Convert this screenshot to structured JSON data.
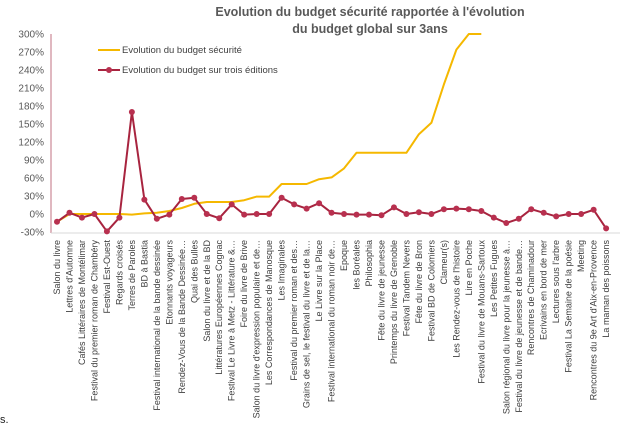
{
  "chart_data": {
    "type": "line",
    "title": "Evolution du budget sécurité rapportée à l'évolution du budget global sur 3ans",
    "title_lines": [
      "Evolution du budget sécurité rapportée à l'évolution",
      "du budget global sur 3ans"
    ],
    "xlabel": "",
    "ylabel": "",
    "ylim": [
      -30,
      300
    ],
    "yticks": [
      -30,
      0,
      30,
      60,
      90,
      120,
      150,
      180,
      210,
      240,
      270,
      300
    ],
    "ytick_labels": [
      "-30%",
      "0%",
      "30%",
      "60%",
      "90%",
      "120%",
      "150%",
      "180%",
      "210%",
      "240%",
      "270%",
      "300%"
    ],
    "grid": false,
    "legend_position": "top-left",
    "categories": [
      "Salon du livre",
      "Lettres d'Automne",
      "Cafés Littéraires de Montélimar",
      "Festival du premier roman de Chambéry",
      "Festival Est-Ouest",
      "Regards croisés",
      "Terres de Paroles",
      "BD à Bastia",
      "Festival international de la bande dessinée",
      "Etonnants voyageurs",
      "Rendez-Vous de la Bande Dessinée…",
      "Quai des Bulles",
      "Salon du livre et de la BD",
      "Littératures Européennes Cognac",
      "Festival Le Livre à Metz - Littérature &…",
      "Foire du livre de Brive",
      "Salon du livre d'expression populaire et de…",
      "Les Correspondances de Manosque",
      "Les Imaginales",
      "Festival du premier roman et des…",
      "Grains de sel, le festival du livre et de la…",
      "Le Livre sur la Place",
      "Festival international du roman noir de…",
      "Epoque",
      "les Boréales",
      "Philosophia",
      "Fête du livre de jeunesse",
      "Printemps du livre de Grenoble",
      "Festival Tandem Nevers",
      "Fête du livre de Bron",
      "Festival BD de Colomiers",
      "Clameur(s)",
      "Les Rendez-vous de l'histoire",
      "Lire en Poche",
      "Festival du livre de Mouans-Sartoux",
      "Les Petites Fugues",
      "Salon régional du livre pour la jeunesse à…",
      "Festival du livre de jeunesse et de bande…",
      "Rencontres de Chaminadour",
      "Ecrivains en bord de mer",
      "Lectures sous l'arbre",
      "Festival La Semaine de la poésie",
      "Meeting",
      "Rencontres du 9e Art d'Aix-en-Provence",
      "La maman des poissons"
    ],
    "series": [
      {
        "name": "Evolution du budget sécurité",
        "color": "#F5B800",
        "marker": "none",
        "values": [
          -13,
          0,
          0,
          0,
          0,
          0,
          -1,
          1,
          2,
          5,
          10,
          17,
          20,
          20,
          20,
          23,
          29,
          29,
          50,
          50,
          50,
          58,
          61,
          76,
          102,
          102,
          102,
          102,
          102,
          133,
          152,
          216,
          274,
          300,
          300,
          null,
          null,
          null,
          null,
          null,
          null,
          null,
          null,
          null,
          null
        ]
      },
      {
        "name": "Evolution du budget sur trois éditions",
        "color": "#A8243F",
        "marker": "circle",
        "values": [
          -13,
          2,
          -6,
          0,
          -29,
          -6,
          170,
          24,
          -8,
          -1,
          25,
          27,
          0,
          -7,
          16,
          -1,
          0,
          0,
          27,
          16,
          9,
          18,
          2,
          0,
          -1,
          -1,
          -2,
          11,
          0,
          3,
          0,
          8,
          9,
          8,
          5,
          -6,
          -15,
          -8,
          8,
          2,
          -4,
          0,
          0,
          7,
          -24
        ]
      }
    ]
  },
  "footer_fragment": "s."
}
